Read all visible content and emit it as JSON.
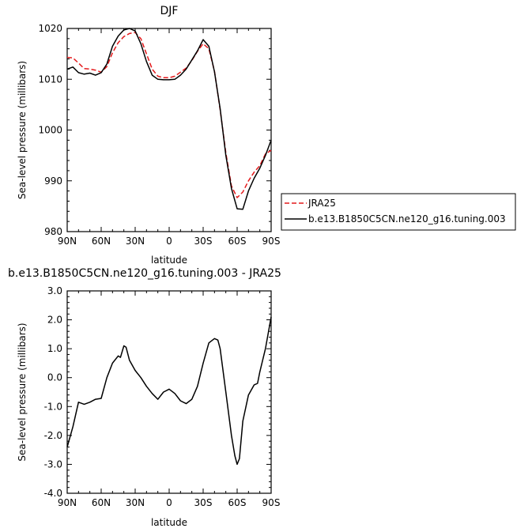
{
  "chart_data": [
    {
      "type": "line",
      "title": "DJF",
      "xlabel": "latitude",
      "ylabel": "Sea-level pressure (millibars)",
      "xlim": [
        90,
        -90
      ],
      "ylim": [
        980,
        1020
      ],
      "x_ticks": [
        90,
        60,
        30,
        0,
        -30,
        -60,
        -90
      ],
      "x_tick_labels": [
        "90N",
        "60N",
        "30N",
        "0",
        "30S",
        "60S",
        "90S"
      ],
      "y_ticks": [
        980,
        990,
        1000,
        1010,
        1020
      ],
      "y_tick_labels": [
        "980",
        "990",
        "1000",
        "1010",
        "1020"
      ],
      "legend": {
        "placement": "right",
        "entries": [
          "JRA25",
          "b.e13.B1850C5CN.ne120_g16.tuning.003"
        ]
      },
      "series": [
        {
          "name": "JRA25",
          "color": "#e41a1c",
          "dash": true,
          "x": [
            90,
            85,
            80,
            75,
            70,
            65,
            60,
            55,
            50,
            45,
            40,
            35,
            30,
            25,
            20,
            15,
            10,
            5,
            0,
            -5,
            -10,
            -15,
            -20,
            -25,
            -30,
            -35,
            -40,
            -45,
            -50,
            -55,
            -60,
            -65,
            -70,
            -75,
            -80,
            -85,
            -90
          ],
          "y": [
            1014.3,
            1014.2,
            1013.2,
            1012.1,
            1012.0,
            1011.8,
            1011.4,
            1012.5,
            1015.2,
            1017.2,
            1018.4,
            1019.0,
            1019.2,
            1018.0,
            1015.0,
            1012.0,
            1010.6,
            1010.3,
            1010.3,
            1010.6,
            1011.4,
            1012.2,
            1013.7,
            1015.5,
            1017.0,
            1016.0,
            1011.6,
            1004.0,
            995.5,
            989.0,
            986.7,
            987.8,
            990.0,
            991.7,
            993.0,
            995.3,
            996.0
          ]
        },
        {
          "name": "b.e13.B1850C5CN.ne120_g16.tuning.003",
          "color": "#000000",
          "dash": false,
          "x": [
            90,
            85,
            80,
            75,
            70,
            65,
            60,
            55,
            50,
            45,
            40,
            35,
            30,
            25,
            20,
            15,
            10,
            5,
            0,
            -5,
            -10,
            -15,
            -20,
            -25,
            -30,
            -35,
            -40,
            -45,
            -50,
            -55,
            -60,
            -65,
            -70,
            -75,
            -80,
            -85,
            -90
          ],
          "y": [
            1012.0,
            1012.4,
            1011.3,
            1011.0,
            1011.2,
            1010.8,
            1011.3,
            1013.0,
            1016.5,
            1018.5,
            1019.7,
            1020.0,
            1019.5,
            1017.0,
            1013.5,
            1010.8,
            1010.0,
            1009.9,
            1009.9,
            1010.0,
            1010.8,
            1012.0,
            1013.8,
            1015.6,
            1017.8,
            1016.5,
            1011.5,
            1004.2,
            995.0,
            988.5,
            984.5,
            984.4,
            988.0,
            990.5,
            992.5,
            995.0,
            998.0
          ]
        }
      ]
    },
    {
      "type": "line",
      "title": "b.e13.B1850C5CN.ne120_g16.tuning.003 - JRA25",
      "xlabel": "latitude",
      "ylabel": "Sea-level pressure (millibars)",
      "xlim": [
        90,
        -90
      ],
      "ylim": [
        -4.0,
        3.0
      ],
      "x_ticks": [
        90,
        60,
        30,
        0,
        -30,
        -60,
        -90
      ],
      "x_tick_labels": [
        "90N",
        "60N",
        "30N",
        "0",
        "30S",
        "60S",
        "90S"
      ],
      "y_ticks": [
        -4.0,
        -3.0,
        -2.0,
        -1.0,
        0.0,
        1.0,
        2.0,
        3.0
      ],
      "y_tick_labels": [
        "-4.0",
        "-3.0",
        "-2.0",
        "-1.0",
        "0.0",
        "1.0",
        "2.0",
        "3.0"
      ],
      "series": [
        {
          "color": "#000000",
          "dash": false,
          "x": [
            90,
            85,
            80,
            75,
            70,
            65,
            60,
            55,
            50,
            45,
            43,
            40,
            38,
            35,
            30,
            25,
            20,
            15,
            10,
            5,
            0,
            -5,
            -10,
            -15,
            -20,
            -25,
            -30,
            -35,
            -40,
            -43,
            -45,
            -50,
            -55,
            -58,
            -60,
            -62,
            -65,
            -70,
            -75,
            -78,
            -80,
            -85,
            -90
          ],
          "y": [
            -2.4,
            -1.7,
            -0.85,
            -0.92,
            -0.85,
            -0.75,
            -0.72,
            0.0,
            0.5,
            0.75,
            0.7,
            1.1,
            1.05,
            0.6,
            0.25,
            0.0,
            -0.3,
            -0.55,
            -0.75,
            -0.5,
            -0.4,
            -0.55,
            -0.8,
            -0.9,
            -0.75,
            -0.3,
            0.5,
            1.2,
            1.35,
            1.3,
            1.0,
            -0.5,
            -2.0,
            -2.7,
            -3.0,
            -2.8,
            -1.5,
            -0.6,
            -0.25,
            -0.2,
            0.2,
            1.0,
            2.1
          ]
        }
      ]
    }
  ]
}
